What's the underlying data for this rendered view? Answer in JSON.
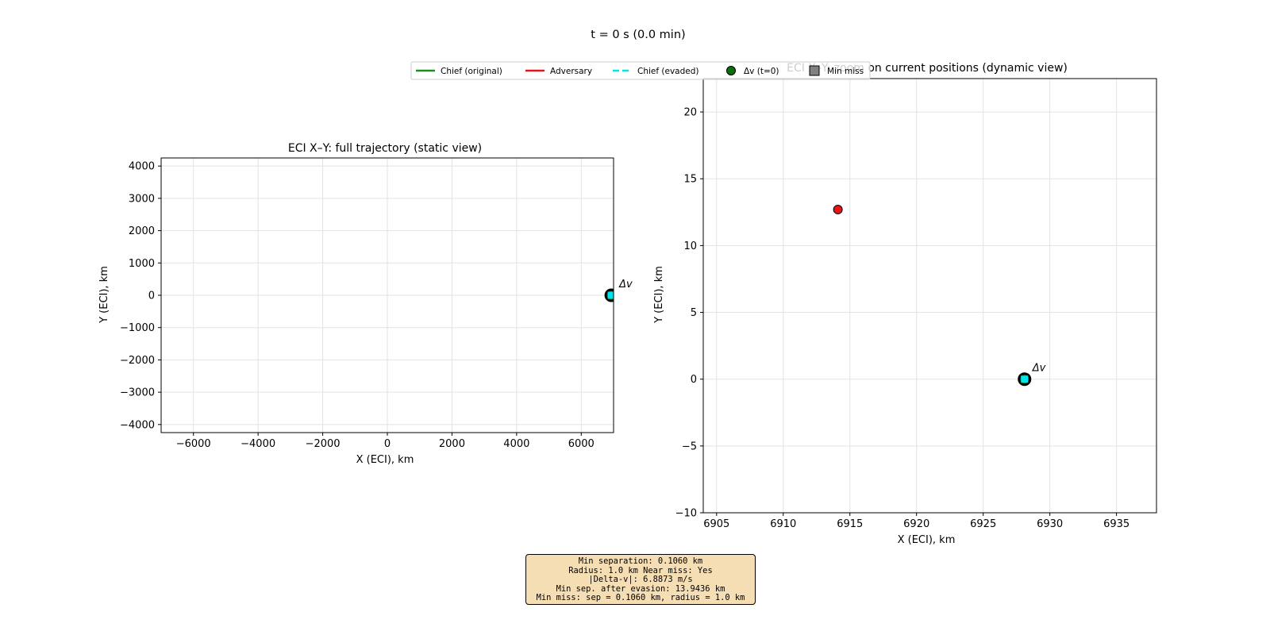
{
  "suptitle": "t = 0 s (0.0 min)",
  "legend": {
    "entries": [
      {
        "label": "Chief (original)",
        "style": "line",
        "color": "#1a8f1a"
      },
      {
        "label": "Adversary",
        "style": "line",
        "color": "#e8141a"
      },
      {
        "label": "Chief (evaded)",
        "style": "dashed",
        "color": "#00e5ee"
      },
      {
        "label": "Δv (t=0)",
        "style": "circle",
        "color": "#0a6e0a"
      },
      {
        "label": "Min miss",
        "style": "square",
        "color": "#808080"
      }
    ]
  },
  "info_box": {
    "lines": [
      "Min separation: 0.1060 km",
      "Radius: 1.0 km  Near miss: Yes",
      "|Delta-v|: 6.8873 m/s",
      "Min sep. after evasion: 13.9436 km",
      "Min miss: sep = 0.1060 km, radius = 1.0 km"
    ]
  },
  "colors": {
    "chief": "#1a8f1a",
    "adversary": "#e8141a",
    "evaded": "#00e5ee",
    "deltav_marker": "#0a6e0a",
    "min_miss": "#808080",
    "info_box_bg": "#f5deb3"
  },
  "chart_data": [
    {
      "type": "scatter",
      "title": "ECI X–Y: full trajectory (static view)",
      "xlabel": "X (ECI), km",
      "ylabel": "Y (ECI), km",
      "xlim": [
        -7000,
        7000
      ],
      "ylim": [
        -4250,
        4250
      ],
      "xticks": [
        -6000,
        -4000,
        -2000,
        0,
        2000,
        4000,
        6000
      ],
      "yticks": [
        -4000,
        -3000,
        -2000,
        -1000,
        0,
        1000,
        2000,
        3000,
        4000
      ],
      "grid": true,
      "points": [
        {
          "series": "Chief (evaded)",
          "x": 6928,
          "y": 0,
          "marker": "ring-square"
        }
      ],
      "annotations": [
        {
          "text": "Δv",
          "x": 6928,
          "y": 0
        }
      ]
    },
    {
      "type": "scatter",
      "title": "ECI X–Y: zoom on current positions (dynamic view)",
      "xlabel": "X (ECI), km",
      "ylabel": "Y (ECI), km",
      "xlim": [
        6904,
        6938
      ],
      "ylim": [
        -10,
        22.5
      ],
      "xticks": [
        6905,
        6910,
        6915,
        6920,
        6925,
        6930,
        6935
      ],
      "yticks": [
        -10,
        -5,
        0,
        5,
        10,
        15,
        20
      ],
      "grid": true,
      "points": [
        {
          "series": "Adversary",
          "x": 6914.1,
          "y": 12.7,
          "marker": "circle"
        },
        {
          "series": "Chief (evaded)",
          "x": 6928.1,
          "y": 0,
          "marker": "ring-square"
        }
      ],
      "annotations": [
        {
          "text": "Δv",
          "x": 6928.1,
          "y": 0
        }
      ]
    }
  ]
}
